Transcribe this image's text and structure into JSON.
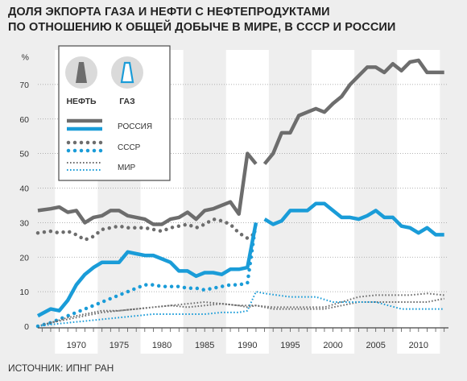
{
  "chart_data": {
    "type": "line",
    "title": [
      "ДОЛЯ ЭКПОРТА ГАЗА И НЕФТИ С НЕФТЕПРОДУКТАМИ",
      "ПО ОТНОШЕНИЮ К ОБЩЕЙ ДОБЫЧЕ В МИРЕ, В СССР И РОССИИ"
    ],
    "ylabel": "%",
    "ylim": [
      0,
      80
    ],
    "yticks": [
      0,
      10,
      20,
      30,
      40,
      50,
      60,
      70
    ],
    "xlim": [
      1965.5,
      2013.5
    ],
    "xticks": [
      1970,
      1975,
      1980,
      1985,
      1990,
      1995,
      2000,
      2005,
      2010
    ],
    "grid": true,
    "legend_placement": "top-left",
    "legend": {
      "oil_label": "НЕФТЬ",
      "gas_label": "ГАЗ",
      "russia_label": "РОССИЯ",
      "ussr_label": "СССР",
      "world_label": "МИР"
    },
    "colors": {
      "oil": "#6d6d6d",
      "gas": "#1a9cd8",
      "background": "#eeeeee",
      "band": "#ffffff"
    },
    "series": [
      {
        "id": "oil-russia",
        "commodity": "oil",
        "style": "solid",
        "x": [
          1992,
          1993,
          1994,
          1995,
          1996,
          1997,
          1998,
          1999,
          2000,
          2001,
          2002,
          2003,
          2004,
          2005,
          2006,
          2007,
          2008,
          2009,
          2010,
          2011,
          2012,
          2013
        ],
        "y": [
          47,
          50,
          56,
          56,
          61,
          62,
          63,
          62,
          64.5,
          66.5,
          70,
          72.5,
          75,
          75,
          73.5,
          76,
          74,
          76.5,
          77,
          73.5,
          73.5,
          73.5
        ]
      },
      {
        "id": "gas-russia",
        "commodity": "gas",
        "style": "solid",
        "x": [
          1992,
          1993,
          1994,
          1995,
          1996,
          1997,
          1998,
          1999,
          2000,
          2001,
          2002,
          2003,
          2004,
          2005,
          2006,
          2007,
          2008,
          2009,
          2010,
          2011,
          2012,
          2013
        ],
        "y": [
          31,
          29.5,
          30.5,
          33.5,
          33.5,
          33.5,
          35.5,
          35.5,
          33.5,
          31.5,
          31.5,
          31,
          32,
          33.5,
          31.5,
          31.5,
          29,
          28.5,
          27,
          28.5,
          26.5,
          26.5
        ]
      },
      {
        "id": "oil-ussr",
        "commodity": "oil",
        "style": "solid",
        "x": [
          1965.5,
          1967,
          1968,
          1969,
          1970,
          1971,
          1972,
          1973,
          1974,
          1975,
          1976,
          1977,
          1978,
          1979,
          1980,
          1981,
          1982,
          1983,
          1984,
          1985,
          1986,
          1987,
          1988,
          1989,
          1990,
          1991
        ],
        "y": [
          33.5,
          34,
          34.5,
          33,
          33.5,
          30,
          31.5,
          32,
          33.5,
          33.5,
          32,
          31.5,
          31,
          29.5,
          29.5,
          31,
          31.5,
          33,
          31,
          33.5,
          34,
          35,
          36,
          32.5,
          50,
          47
        ]
      },
      {
        "id": "oil-ussr-dots",
        "commodity": "oil",
        "style": "dots",
        "x": [
          1965.5,
          1967,
          1968,
          1969,
          1970,
          1971,
          1972,
          1973,
          1974,
          1975,
          1976,
          1977,
          1978,
          1979,
          1980,
          1981,
          1982,
          1983,
          1984,
          1985,
          1986,
          1987,
          1988,
          1989,
          1990,
          1991
        ],
        "y": [
          27,
          27.5,
          27,
          27.5,
          26.5,
          25,
          26,
          28,
          28.5,
          29,
          28.5,
          28.5,
          28.5,
          28,
          27.5,
          28.5,
          29,
          29.5,
          28.5,
          29.5,
          31,
          30.5,
          29.5,
          27,
          25.5,
          27
        ]
      },
      {
        "id": "gas-ussr",
        "commodity": "gas",
        "style": "solid",
        "x": [
          1965.5,
          1967,
          1968,
          1969,
          1970,
          1971,
          1972,
          1973,
          1974,
          1975,
          1976,
          1977,
          1978,
          1979,
          1980,
          1981,
          1982,
          1983,
          1984,
          1985,
          1986,
          1987,
          1988,
          1989,
          1990,
          1991
        ],
        "y": [
          3,
          5,
          4.5,
          7.5,
          12,
          15,
          17,
          18.5,
          18.5,
          18.5,
          21.5,
          21,
          20.5,
          20.5,
          19.5,
          18.5,
          16,
          16,
          14.5,
          15.5,
          15.5,
          15,
          16.5,
          16.5,
          17,
          30
        ]
      },
      {
        "id": "gas-ussr-dots",
        "commodity": "gas",
        "style": "dots",
        "x": [
          1965.5,
          1967,
          1968,
          1969,
          1970,
          1971,
          1972,
          1973,
          1974,
          1975,
          1976,
          1977,
          1978,
          1979,
          1980,
          1981,
          1982,
          1983,
          1984,
          1985,
          1986,
          1987,
          1988,
          1989,
          1990,
          1991
        ],
        "y": [
          0,
          1,
          2,
          3,
          4,
          5,
          6,
          7,
          8,
          9,
          10,
          11,
          12,
          12,
          11.5,
          11.5,
          11.5,
          11,
          11,
          10.5,
          11,
          11.5,
          12,
          12,
          12.5,
          30
        ]
      },
      {
        "id": "oil-world",
        "commodity": "oil",
        "style": "solid-thin",
        "x": [
          1965.5,
          1967,
          1969,
          1971,
          1973,
          1975,
          1977,
          1979,
          1981,
          1983,
          1985,
          1987,
          1989,
          1990,
          1991,
          1993,
          1995,
          1997,
          1999,
          2001,
          2003,
          2005,
          2007,
          2009,
          2011,
          2013
        ],
        "y": [
          0,
          1,
          2.5,
          3.5,
          4.5,
          4.5,
          5,
          5.5,
          6,
          5.5,
          6,
          6.5,
          6,
          5.5,
          6,
          5,
          5,
          5,
          5,
          6,
          7,
          7,
          7,
          7,
          7,
          8
        ]
      },
      {
        "id": "oil-world-dots",
        "commodity": "oil",
        "style": "dots-small",
        "x": [
          1965.5,
          1967,
          1969,
          1971,
          1973,
          1975,
          1977,
          1979,
          1981,
          1983,
          1985,
          1987,
          1989,
          1990,
          1991,
          1993,
          1995,
          1997,
          1999,
          2001,
          2003,
          2005,
          2007,
          2009,
          2011,
          2013
        ],
        "y": [
          0,
          1,
          2,
          3,
          4,
          4.5,
          5,
          5.5,
          6,
          6.5,
          7,
          6.5,
          6,
          6,
          6,
          5.5,
          5.5,
          5.5,
          5.5,
          7,
          8.5,
          9,
          9,
          9,
          9.5,
          9
        ]
      },
      {
        "id": "gas-world-dots",
        "commodity": "gas",
        "style": "dots-small",
        "x": [
          1965.5,
          1967,
          1969,
          1971,
          1973,
          1975,
          1977,
          1979,
          1981,
          1983,
          1985,
          1987,
          1989,
          1990,
          1991,
          1992,
          1995,
          1998,
          2000,
          2002,
          2005,
          2008,
          2010,
          2013
        ],
        "y": [
          0,
          0.5,
          1,
          1.5,
          2,
          2.5,
          3,
          3.5,
          3.5,
          3.5,
          3.5,
          4,
          4,
          4.5,
          10,
          9.5,
          8.5,
          8.5,
          7,
          7,
          7,
          5,
          5,
          5
        ]
      }
    ]
  },
  "source_text": "ИСТОЧНИК: ИПНГ РАН"
}
